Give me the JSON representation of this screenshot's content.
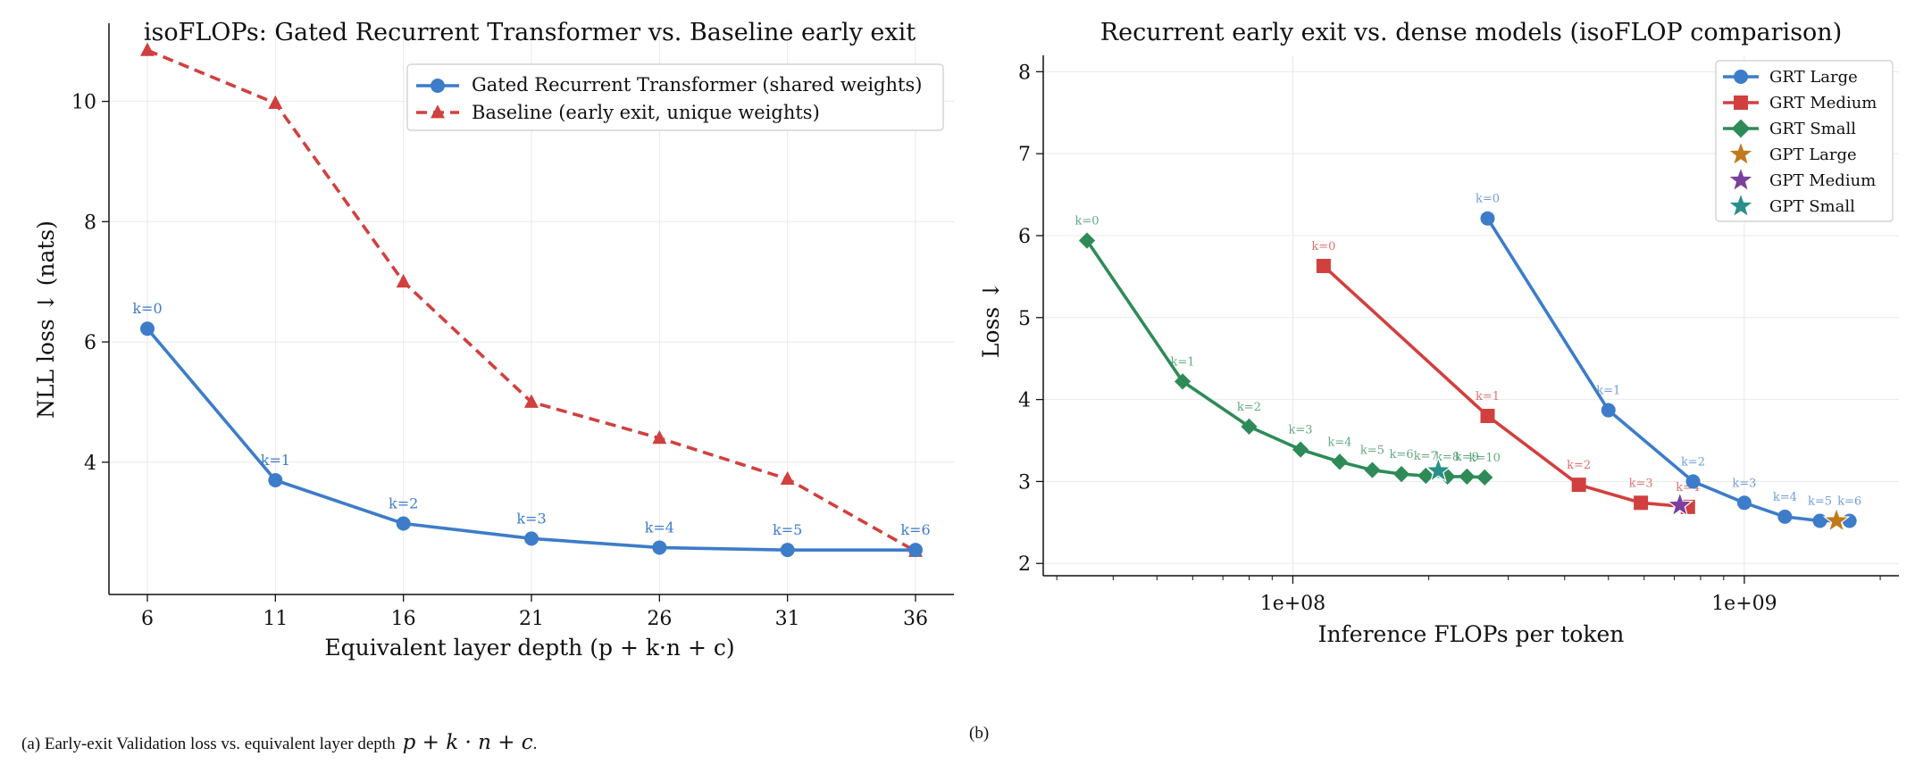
{
  "chart_data": [
    {
      "type": "line",
      "title": "isoFLOPs: Gated Recurrent Transformer vs. Baseline early exit",
      "xlabel": "Equivalent layer depth  (p + k·n + c)",
      "ylabel": "NLL loss ↓ (nats)",
      "x_ticks": [
        "6",
        "11",
        "16",
        "21",
        "26",
        "31",
        "36"
      ],
      "y_ticks": [
        "4",
        "6",
        "8",
        "10"
      ],
      "xlim": [
        4.5,
        37.5
      ],
      "ylim": [
        1.8,
        11.3
      ],
      "grid": true,
      "legend_position": "top-right",
      "series": [
        {
          "name": "Gated Recurrent Transformer (shared weights)",
          "color": "#3d7cc9",
          "marker": "circle",
          "line": "solid",
          "x": [
            6,
            11,
            16,
            21,
            26,
            31,
            36
          ],
          "y": [
            6.22,
            3.7,
            2.98,
            2.73,
            2.58,
            2.54,
            2.54
          ],
          "labels": [
            "k=0",
            "k=1",
            "k=2",
            "k=3",
            "k=4",
            "k=5",
            "k=6"
          ]
        },
        {
          "name": "Baseline (early exit, unique weights)",
          "color": "#d1403f",
          "marker": "triangle",
          "line": "dashed",
          "x": [
            6,
            11,
            16,
            21,
            26,
            31,
            36
          ],
          "y": [
            10.85,
            9.97,
            7.0,
            5.0,
            4.4,
            3.72,
            2.52
          ]
        }
      ]
    },
    {
      "type": "line",
      "title": "Recurrent early exit vs. dense models  (isoFLOP comparison)",
      "xlabel": "Inference FLOPs per token",
      "ylabel": "Loss ↓",
      "x_scale": "log",
      "x_ticks": [
        "1e+08",
        "1e+09"
      ],
      "y_ticks": [
        "2",
        "3",
        "4",
        "5",
        "6",
        "7",
        "8"
      ],
      "xlim": [
        28000000,
        2200000000
      ],
      "ylim": [
        1.85,
        8.2
      ],
      "grid": true,
      "legend_position": "top-right",
      "series": [
        {
          "name": "GRT Large",
          "color": "#3d7cc9",
          "marker": "circle",
          "x": [
            270000000,
            500000000,
            770000000,
            1000000000,
            1230000000,
            1470000000,
            1710000000
          ],
          "y": [
            6.21,
            3.87,
            3.0,
            2.74,
            2.57,
            2.52,
            2.52
          ],
          "labels": [
            "k=0",
            "k=1",
            "k=2",
            "k=3",
            "k=4",
            "k=5",
            "k=6"
          ]
        },
        {
          "name": "GRT Medium",
          "color": "#d1403f",
          "marker": "square",
          "x": [
            117000000,
            270000000,
            430000000,
            590000000,
            750000000
          ],
          "y": [
            5.63,
            3.8,
            2.96,
            2.74,
            2.69
          ],
          "labels": [
            "k=0",
            "k=1",
            "k=2",
            "k=3",
            "k=4"
          ]
        },
        {
          "name": "GRT Small",
          "color": "#2e8b57",
          "marker": "diamond",
          "x": [
            35000000,
            57000000,
            80000000,
            104000000,
            127000000,
            150000000,
            174000000,
            197000000,
            220000000,
            243000000,
            266000000
          ],
          "y": [
            5.94,
            4.22,
            3.67,
            3.39,
            3.24,
            3.14,
            3.09,
            3.07,
            3.06,
            3.06,
            3.05
          ],
          "labels": [
            "k=0",
            "k=1",
            "k=2",
            "k=3",
            "k=4",
            "k=5",
            "k=6",
            "k=7",
            "k=8",
            "k=9",
            "k=10"
          ]
        },
        {
          "name": "GPT Large",
          "color": "#c07a1c",
          "marker": "star",
          "x": [
            1600000000
          ],
          "y": [
            2.52
          ]
        },
        {
          "name": "GPT Medium",
          "color": "#7b3f9e",
          "marker": "star",
          "x": [
            720000000
          ],
          "y": [
            2.71
          ]
        },
        {
          "name": "GPT Small",
          "color": "#2a8f8a",
          "marker": "star",
          "x": [
            210000000
          ],
          "y": [
            3.13
          ]
        }
      ]
    }
  ],
  "captions": {
    "a_text": "(a) Early-exit Validation loss vs. equivalent layer depth",
    "a_math": "p + k · n + c",
    "a_end": ".",
    "b": "(b)"
  }
}
